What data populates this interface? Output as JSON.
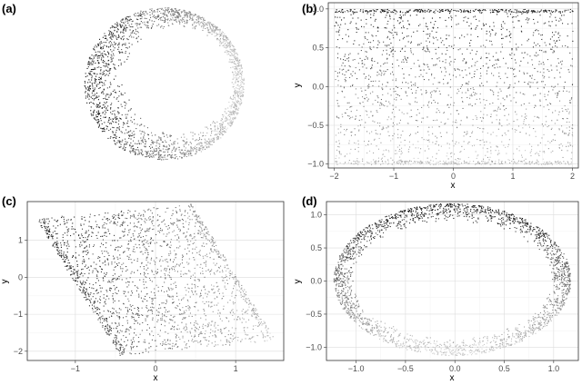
{
  "panel_labels": [
    "(a)",
    "(b)",
    "(c)",
    "(d)"
  ],
  "colors": {
    "dark_point": "#111111",
    "light_point": "#d8d8d8",
    "grid": "#dcdcdc",
    "frame": "#333333"
  },
  "chart_data": [
    {
      "id": "a",
      "type": "scatter",
      "title": "",
      "shape": "3d-cylinder-band",
      "axes_shown": false,
      "grid": false,
      "n_points": 5000,
      "color_gradient": "dark on left side to light on right side",
      "points_sample": [
        [
          -0.95,
          0.2
        ],
        [
          0.9,
          0.1
        ],
        [
          0.0,
          1.0
        ],
        [
          0.0,
          -1.0
        ]
      ]
    },
    {
      "id": "b",
      "type": "scatter",
      "title": "",
      "shape": "rectangle",
      "xlabel": "x",
      "ylabel": "y",
      "xlim": [
        -2.1,
        2.1
      ],
      "ylim": [
        -1.05,
        1.08
      ],
      "x_ticks": [
        -2,
        -1,
        0,
        1,
        2
      ],
      "y_ticks": [
        -1.0,
        -0.5,
        0.0,
        0.5,
        1.0
      ],
      "x_tick_labels": [
        "−2",
        "−1",
        "0",
        "1",
        "2"
      ],
      "y_tick_labels": [
        "−1.0",
        "−0.5",
        "0.0",
        "0.5",
        "1.0"
      ],
      "grid": true,
      "data_extent": {
        "x": [
          -2.0,
          2.0
        ],
        "y": [
          -1.0,
          1.0
        ]
      },
      "n_points": 5000,
      "color_gradient": "dark at top to light at bottom, dense edge rows at y=±1"
    },
    {
      "id": "c",
      "type": "scatter",
      "title": "",
      "shape": "parallelogram",
      "xlabel": "x",
      "ylabel": "y",
      "xlim": [
        -1.6,
        1.6
      ],
      "ylim": [
        -2.25,
        2.05
      ],
      "x_ticks": [
        -1,
        0,
        1
      ],
      "y_ticks": [
        -2,
        -1,
        0,
        1
      ],
      "x_tick_labels": [
        "−1",
        "0",
        "1"
      ],
      "y_tick_labels": [
        "−2",
        "−1",
        "0",
        "1"
      ],
      "grid": true,
      "vertices": [
        [
          -1.5,
          1.6
        ],
        [
          0.45,
          2.0
        ],
        [
          1.5,
          -1.55
        ],
        [
          -0.45,
          -2.1
        ]
      ],
      "n_points": 5000,
      "color_gradient": "dark on left to light on right"
    },
    {
      "id": "d",
      "type": "scatter",
      "title": "",
      "shape": "ellipse-ring",
      "xlabel": "x",
      "ylabel": "y",
      "xlim": [
        -1.3,
        1.25
      ],
      "ylim": [
        -1.2,
        1.2
      ],
      "x_ticks": [
        -1.0,
        -0.5,
        0.0,
        0.5,
        1.0
      ],
      "y_ticks": [
        -1.0,
        -0.5,
        0.0,
        0.5,
        1.0
      ],
      "x_tick_labels": [
        "−1.0",
        "−0.5",
        "0.0",
        "0.5",
        "1.0"
      ],
      "y_tick_labels": [
        "−1.0",
        "−0.5",
        "0.0",
        "0.5",
        "1.0"
      ],
      "grid": true,
      "center": [
        -0.03,
        0.03
      ],
      "outer_radii": [
        1.2,
        1.15
      ],
      "inner_radii": [
        1.0,
        0.87
      ],
      "n_points": 5000,
      "color_gradient": "dark at top to light at bottom"
    }
  ]
}
